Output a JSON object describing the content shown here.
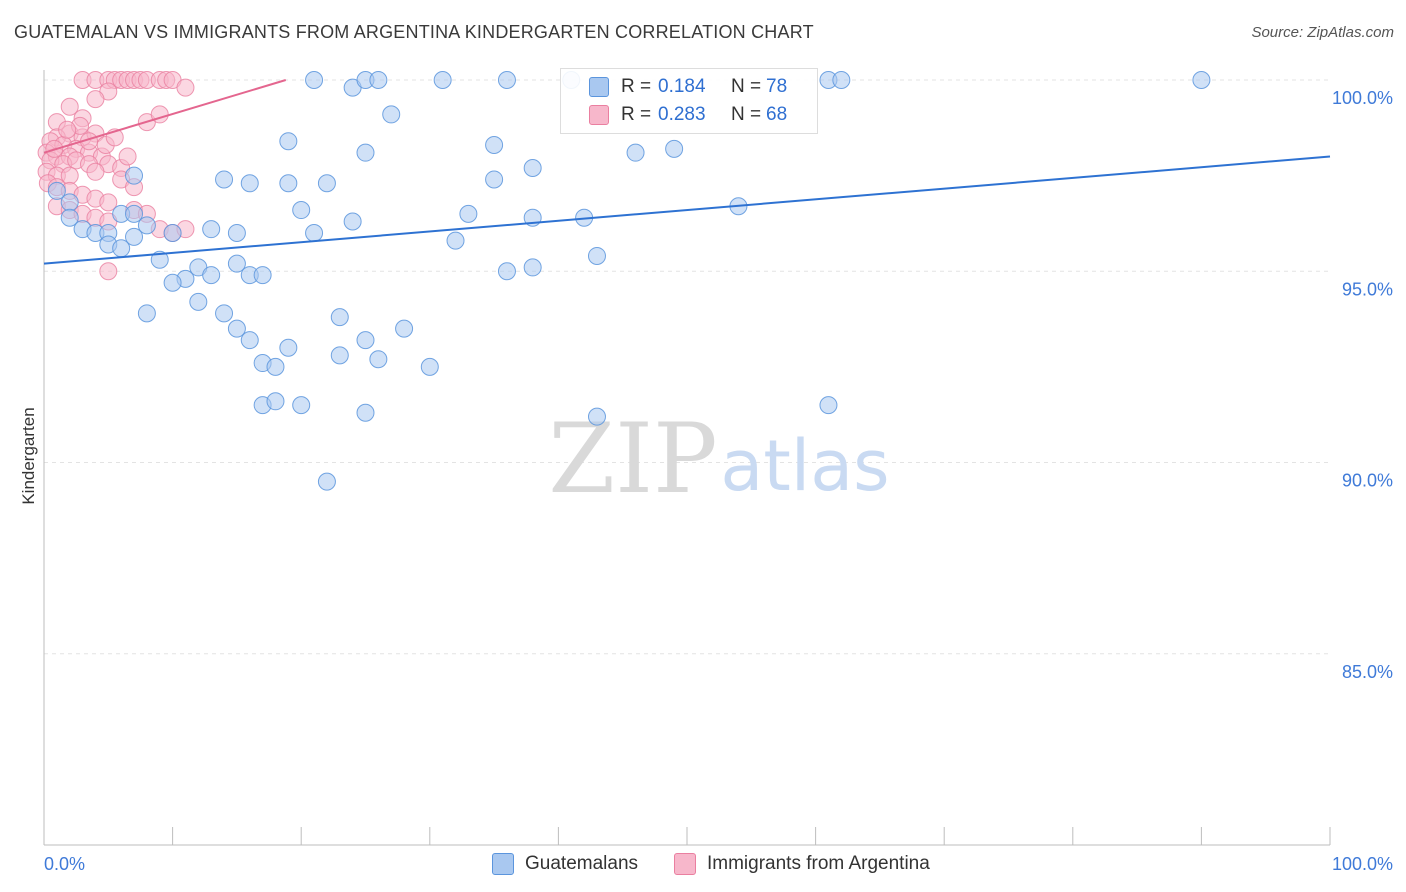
{
  "header": {
    "title": "GUATEMALAN VS IMMIGRANTS FROM ARGENTINA KINDERGARTEN CORRELATION CHART",
    "source": "Source: ZipAtlas.com"
  },
  "watermark": {
    "zip": "ZIP",
    "atlas": "atlas"
  },
  "legend": {
    "r_label": "R = ",
    "n_label": "N = ",
    "series": [
      {
        "name": "Guatemalans",
        "r": "0.184",
        "n": "78"
      },
      {
        "name": "Immigrants from Argentina",
        "r": "0.283",
        "n": "68"
      }
    ]
  },
  "colors": {
    "blue_fill": "#a9c8f0",
    "blue_stroke": "#5b95dd",
    "blue_line": "#2e72d2",
    "pink_fill": "#f7b7cb",
    "pink_stroke": "#ea7fa0",
    "pink_line": "#e4668f",
    "tick_text": "#3f7ad8",
    "grid": "#e3e3e3"
  },
  "chart_data": {
    "type": "scatter",
    "title": "GUATEMALAN VS IMMIGRANTS FROM ARGENTINA KINDERGARTEN CORRELATION CHART",
    "xlabel": "",
    "ylabel": "Kindergarten",
    "xlim": [
      0,
      100
    ],
    "ylim": [
      80,
      100.5
    ],
    "x_tick_labels": [
      "0.0%",
      "100.0%"
    ],
    "y_ticks": [
      100,
      95,
      90,
      85
    ],
    "y_tick_labels": [
      "100.0%",
      "95.0%",
      "90.0%",
      "85.0%"
    ],
    "grid": true,
    "legend_position": "top-center",
    "series": [
      {
        "name": "Guatemalans",
        "r": 0.184,
        "n": 78,
        "trend": {
          "x": [
            0,
            100
          ],
          "y": [
            95.2,
            98.0
          ]
        },
        "points": [
          [
            21,
            100
          ],
          [
            24,
            99.8
          ],
          [
            25,
            100
          ],
          [
            26,
            100
          ],
          [
            31,
            100
          ],
          [
            36,
            100
          ],
          [
            41,
            100
          ],
          [
            61,
            100
          ],
          [
            62,
            100
          ],
          [
            90,
            100
          ],
          [
            27,
            99.1
          ],
          [
            19,
            98.4
          ],
          [
            25,
            98.1
          ],
          [
            35,
            98.3
          ],
          [
            46,
            98.1
          ],
          [
            38,
            97.7
          ],
          [
            14,
            97.4
          ],
          [
            16,
            97.3
          ],
          [
            19,
            97.3
          ],
          [
            22,
            97.3
          ],
          [
            35,
            97.4
          ],
          [
            1,
            97.1
          ],
          [
            2,
            96.8
          ],
          [
            6,
            96.5
          ],
          [
            7,
            96.5
          ],
          [
            20,
            96.6
          ],
          [
            33,
            96.5
          ],
          [
            24,
            96.3
          ],
          [
            38,
            96.4
          ],
          [
            2,
            96.4
          ],
          [
            3,
            96.1
          ],
          [
            4,
            96.0
          ],
          [
            5,
            96.0
          ],
          [
            7,
            95.9
          ],
          [
            10,
            96.0
          ],
          [
            13,
            96.1
          ],
          [
            15,
            96.0
          ],
          [
            21,
            96.0
          ],
          [
            32,
            95.8
          ],
          [
            5,
            95.7
          ],
          [
            6,
            95.6
          ],
          [
            9,
            95.3
          ],
          [
            15,
            95.2
          ],
          [
            12,
            95.1
          ],
          [
            11,
            94.8
          ],
          [
            13,
            94.9
          ],
          [
            16,
            94.9
          ],
          [
            17,
            94.9
          ],
          [
            38,
            95.1
          ],
          [
            43,
            95.4
          ],
          [
            10,
            94.7
          ],
          [
            12,
            94.2
          ],
          [
            14,
            93.9
          ],
          [
            8,
            93.9
          ],
          [
            23,
            93.8
          ],
          [
            28,
            93.5
          ],
          [
            15,
            93.5
          ],
          [
            16,
            93.2
          ],
          [
            25,
            93.2
          ],
          [
            19,
            93.0
          ],
          [
            23,
            92.8
          ],
          [
            26,
            92.7
          ],
          [
            17,
            92.6
          ],
          [
            18,
            92.5
          ],
          [
            30,
            92.5
          ],
          [
            7,
            97.5
          ],
          [
            49,
            98.2
          ],
          [
            54,
            96.7
          ],
          [
            42,
            96.4
          ],
          [
            36,
            95.0
          ],
          [
            17,
            91.5
          ],
          [
            18,
            91.6
          ],
          [
            20,
            91.5
          ],
          [
            25,
            91.3
          ],
          [
            43,
            91.2
          ],
          [
            61,
            91.5
          ],
          [
            22,
            89.5
          ],
          [
            8,
            96.2
          ]
        ]
      },
      {
        "name": "Immigrants from Argentina",
        "r": 0.283,
        "n": 68,
        "trend": {
          "x": [
            0,
            18.8
          ],
          "y": [
            98.1,
            100.0
          ]
        },
        "points": [
          [
            3,
            100
          ],
          [
            4,
            100
          ],
          [
            5,
            100
          ],
          [
            5.5,
            100
          ],
          [
            6,
            100
          ],
          [
            6.5,
            100
          ],
          [
            7,
            100
          ],
          [
            7.5,
            100
          ],
          [
            8,
            100
          ],
          [
            9,
            100
          ],
          [
            9.5,
            100
          ],
          [
            10,
            100
          ],
          [
            11,
            99.8
          ],
          [
            5,
            99.7
          ],
          [
            4,
            99.5
          ],
          [
            2,
            99.3
          ],
          [
            3,
            99.0
          ],
          [
            1,
            98.9
          ],
          [
            2,
            98.6
          ],
          [
            3,
            98.5
          ],
          [
            4,
            98.6
          ],
          [
            1,
            98.5
          ],
          [
            0.5,
            98.4
          ],
          [
            1.5,
            98.3
          ],
          [
            2.5,
            98.2
          ],
          [
            3.5,
            98.1
          ],
          [
            0.2,
            98.1
          ],
          [
            1,
            98.0
          ],
          [
            2,
            98.0
          ],
          [
            4.5,
            98.0
          ],
          [
            0.5,
            97.9
          ],
          [
            1.5,
            97.8
          ],
          [
            2.5,
            97.9
          ],
          [
            3.5,
            97.8
          ],
          [
            5,
            97.8
          ],
          [
            6,
            97.7
          ],
          [
            4,
            97.6
          ],
          [
            0.2,
            97.6
          ],
          [
            1,
            97.5
          ],
          [
            2,
            97.5
          ],
          [
            0.3,
            97.3
          ],
          [
            1,
            97.2
          ],
          [
            2,
            97.1
          ],
          [
            3,
            97.0
          ],
          [
            4,
            96.9
          ],
          [
            5,
            96.8
          ],
          [
            1,
            96.7
          ],
          [
            2,
            96.6
          ],
          [
            3,
            96.5
          ],
          [
            4,
            96.4
          ],
          [
            5,
            96.3
          ],
          [
            7,
            96.6
          ],
          [
            8,
            96.5
          ],
          [
            9,
            96.1
          ],
          [
            10,
            96.0
          ],
          [
            11,
            96.1
          ],
          [
            5,
            95.0
          ],
          [
            6,
            97.4
          ],
          [
            3.5,
            98.4
          ],
          [
            2.8,
            98.8
          ],
          [
            1.8,
            98.7
          ],
          [
            0.8,
            98.2
          ],
          [
            4.8,
            98.3
          ],
          [
            5.5,
            98.5
          ],
          [
            6.5,
            98.0
          ],
          [
            7,
            97.2
          ],
          [
            8,
            98.9
          ],
          [
            9,
            99.1
          ]
        ]
      }
    ]
  }
}
